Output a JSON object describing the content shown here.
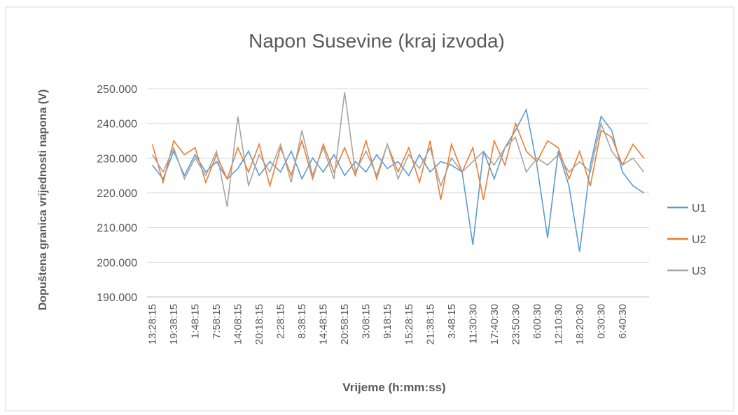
{
  "chart_data": {
    "type": "line",
    "title": "Napon Susevine (kraj izvoda)",
    "x_label": "Vrijeme (h:mm:ss)",
    "y_label": "Dopuštena granica vrijednosti napona (V)",
    "categories": [
      "13:28:15",
      null,
      "19:38:15",
      null,
      "1:48:15",
      null,
      "7:58:15",
      null,
      "14:08:15",
      null,
      "20:18:15",
      null,
      "2:28:15",
      null,
      "8:38:15",
      null,
      "14:48:15",
      null,
      "20:58:15",
      null,
      "3:08:15",
      null,
      "9:18:15",
      null,
      "15:28:15",
      null,
      "21:38:15",
      null,
      "3:48:15",
      null,
      "11:30:30",
      null,
      "17:40:30",
      null,
      "23:50:30",
      null,
      "6:00:30",
      null,
      "12:10:30",
      null,
      "18:20:30",
      null,
      "0:30:30",
      null,
      "6:40:30",
      null,
      null
    ],
    "series": [
      {
        "name": "U1",
        "color": "#5b9bd5",
        "values": [
          228,
          224,
          232,
          225,
          231,
          226,
          229,
          224,
          227,
          232,
          225,
          229,
          226,
          232,
          224,
          230,
          226,
          231,
          225,
          229,
          226,
          231,
          227,
          229,
          225,
          231,
          226,
          229,
          228,
          226,
          205,
          232,
          224,
          233,
          238,
          244,
          228,
          207,
          232,
          222,
          203,
          228,
          242,
          238,
          226,
          222,
          220
        ]
      },
      {
        "name": "U2",
        "color": "#ed7d31",
        "values": [
          234,
          223,
          235,
          231,
          233,
          223,
          231,
          224,
          233,
          226,
          234,
          222,
          233,
          225,
          235,
          224,
          234,
          226,
          233,
          225,
          235,
          224,
          234,
          226,
          233,
          223,
          235,
          218,
          234,
          226,
          233,
          218,
          235,
          228,
          240,
          232,
          229,
          235,
          233,
          224,
          232,
          222,
          238,
          236,
          228,
          234,
          230
        ]
      },
      {
        "name": "U3",
        "color": "#a5a5a5",
        "values": [
          231,
          226,
          233,
          224,
          230,
          225,
          232,
          216,
          242,
          222,
          231,
          226,
          234,
          223,
          238,
          225,
          233,
          224,
          249,
          226,
          232,
          225,
          234,
          224,
          231,
          227,
          233,
          222,
          230,
          226,
          229,
          232,
          228,
          233,
          236,
          226,
          230,
          228,
          231,
          226,
          229,
          226,
          240,
          232,
          228,
          230,
          226
        ]
      }
    ],
    "ylim": [
      190,
      250
    ],
    "yticks": [
      {
        "value": 190,
        "label": "190.000"
      },
      {
        "value": 200,
        "label": "200.000"
      },
      {
        "value": 210,
        "label": "210.000"
      },
      {
        "value": 220,
        "label": "220.000"
      },
      {
        "value": 230,
        "label": "230.000"
      },
      {
        "value": 240,
        "label": "240.000"
      },
      {
        "value": 250,
        "label": "250.000"
      }
    ],
    "grid": true,
    "legend": "right"
  }
}
